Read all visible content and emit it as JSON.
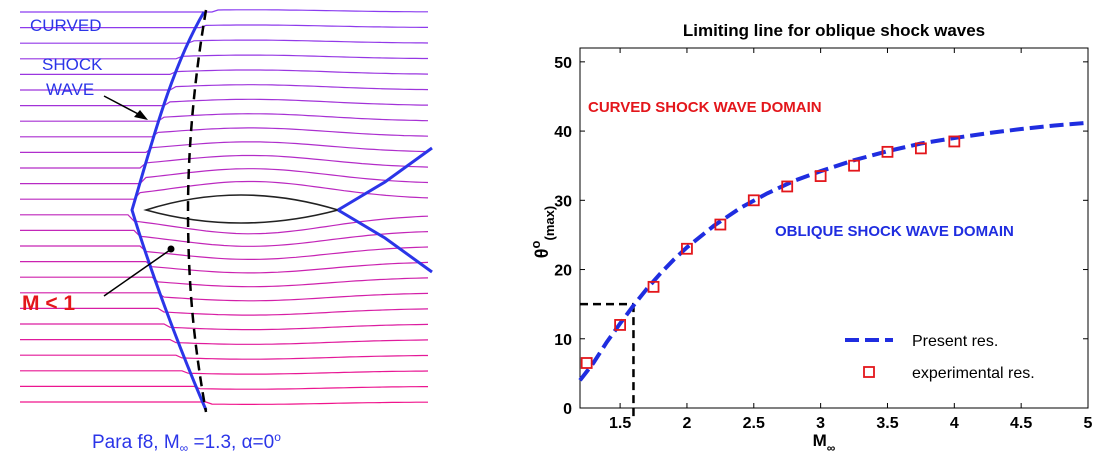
{
  "left_panel": {
    "shock_label": [
      "CURVED",
      "SHOCK",
      "WAVE"
    ],
    "mach_label": "M < 1",
    "caption": {
      "prefix": "Para f8,  M",
      "sub": "∞",
      "mid": " =1.3,  α=0",
      "sup": "o"
    }
  },
  "chart_data": {
    "type": "line",
    "title": "Limiting line for oblique shock waves",
    "xlabel": {
      "main": "M",
      "sub": "∞"
    },
    "ylabel": {
      "main": "θ",
      "sup": "o",
      "sub": "(max)"
    },
    "xlim": [
      1.2,
      5
    ],
    "ylim": [
      0,
      52
    ],
    "xticks": [
      "1.5",
      "2",
      "2.5",
      "3",
      "3.5",
      "4",
      "4.5",
      "5"
    ],
    "yticks": [
      "0",
      "10",
      "20",
      "30",
      "40",
      "50"
    ],
    "annotations": {
      "upper_region": "CURVED SHOCK WAVE DOMAIN",
      "lower_region": "OBLIQUE SHOCK WAVE DOMAIN"
    },
    "reference_point": {
      "x": 1.6,
      "y": 15
    },
    "series": [
      {
        "name": "Present res.",
        "style": "dashed-line",
        "x": [
          1.2,
          1.3,
          1.4,
          1.5,
          1.6,
          1.7,
          1.8,
          1.9,
          2.0,
          2.2,
          2.4,
          2.6,
          2.8,
          3.0,
          3.25,
          3.5,
          3.75,
          4.0,
          4.25,
          4.5,
          4.75,
          5.0
        ],
        "y": [
          4,
          6.5,
          9.5,
          12.2,
          14.8,
          17.2,
          19.4,
          21.4,
          23.2,
          26.3,
          28.9,
          31.0,
          32.8,
          34.2,
          35.8,
          37.1,
          38.2,
          39.0,
          39.7,
          40.3,
          40.8,
          41.2
        ]
      },
      {
        "name": "experimental res.",
        "style": "square-markers",
        "x": [
          1.25,
          1.5,
          1.75,
          2.0,
          2.25,
          2.5,
          2.75,
          3.0,
          3.25,
          3.5,
          3.75,
          4.0
        ],
        "y": [
          6.5,
          12.0,
          17.5,
          23.0,
          26.5,
          30.0,
          32.0,
          33.5,
          35.0,
          37.0,
          37.5,
          38.5
        ]
      }
    ],
    "legend_position": "bottom-right",
    "colors": {
      "line": "#1f2de0",
      "markers": "#e3161b",
      "axes": "#000000"
    }
  },
  "colors": {
    "shock": "#2b35e8",
    "mach_text": "#e3161b",
    "streamline_top": "#8a3cf0",
    "streamline_bottom": "#f0148c"
  }
}
